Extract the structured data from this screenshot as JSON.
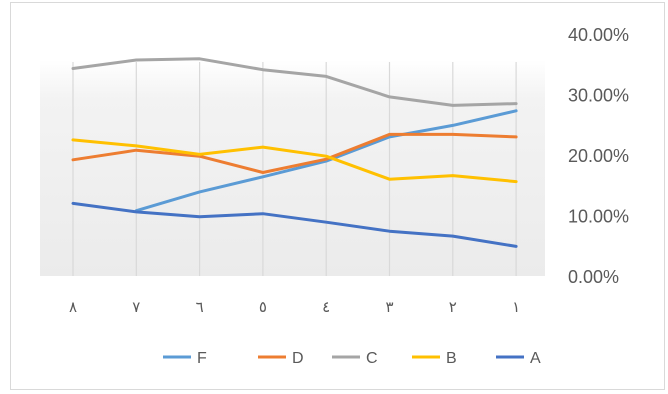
{
  "chart_data": {
    "type": "line",
    "categories": [
      "٨",
      "٧",
      "٦",
      "٥",
      "٤",
      "٣",
      "٢",
      "١"
    ],
    "y_ticks": [
      "0.00%",
      "10.00%",
      "20.00%",
      "30.00%",
      "40.00%"
    ],
    "ylim": [
      0,
      40
    ],
    "y_axis_position": "right",
    "grid": false,
    "legend_position": "bottom",
    "title": "",
    "xlabel": "",
    "ylabel": "",
    "series": [
      {
        "name": "F",
        "color": "#5b9bd5",
        "values": [
          null,
          10.8,
          13.9,
          16.4,
          19.0,
          23.0,
          24.9,
          27.3
        ]
      },
      {
        "name": "D",
        "color": "#ed7d31",
        "values": [
          19.2,
          20.8,
          19.8,
          17.1,
          19.3,
          23.4,
          23.4,
          23.0
        ]
      },
      {
        "name": "C",
        "color": "#a5a5a5",
        "values": [
          34.3,
          35.7,
          35.9,
          34.1,
          33.0,
          29.6,
          28.2,
          28.5
        ]
      },
      {
        "name": "B",
        "color": "#ffc000",
        "values": [
          22.5,
          21.5,
          20.1,
          21.3,
          19.8,
          16.0,
          16.6,
          15.6
        ]
      },
      {
        "name": "A",
        "color": "#4472c4",
        "values": [
          12.0,
          10.6,
          9.8,
          10.3,
          8.9,
          7.4,
          6.6,
          4.9
        ]
      }
    ]
  }
}
